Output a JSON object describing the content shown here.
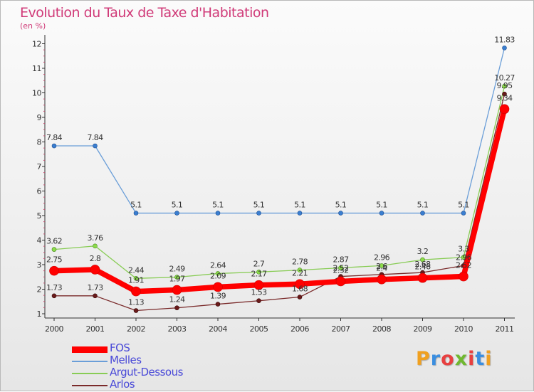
{
  "chart_data": {
    "type": "line",
    "title": "Evolution du Taux de Taxe d'Habitation",
    "subtitle": "(en %)",
    "x": [
      "2000",
      "2001",
      "2002",
      "2003",
      "2004",
      "2005",
      "2006",
      "2007",
      "2008",
      "2009",
      "2010",
      "2011"
    ],
    "ylim": [
      1,
      12
    ],
    "yticks": [
      "1",
      "2",
      "3",
      "4",
      "5",
      "6",
      "7",
      "8",
      "9",
      "10",
      "11",
      "12"
    ],
    "grid": false,
    "legend_position": "bottom-left",
    "series": [
      {
        "name": "FOS",
        "color": "#ff0000",
        "values": [
          2.75,
          2.8,
          1.91,
          1.97,
          2.09,
          2.17,
          2.21,
          2.32,
          2.4,
          2.46,
          2.52,
          9.34
        ],
        "labels": [
          "2.75",
          "2.8",
          "1.91",
          "1.97",
          "2.09",
          "2.17",
          "2.21",
          "2.32",
          "2.4",
          "2.46",
          "2.52",
          "9.34"
        ]
      },
      {
        "name": "Melles",
        "color": "#6a9ed8",
        "values": [
          7.84,
          7.84,
          5.1,
          5.1,
          5.1,
          5.1,
          5.1,
          5.1,
          5.1,
          5.1,
          5.1,
          11.83
        ],
        "labels": [
          "7.84",
          "7.84",
          "5.1",
          "5.1",
          "5.1",
          "5.1",
          "5.1",
          "5.1",
          "5.1",
          "5.1",
          "5.1",
          "11.83"
        ]
      },
      {
        "name": "Argut-Dessous",
        "color": "#88cc55",
        "values": [
          3.62,
          3.76,
          2.44,
          2.49,
          2.64,
          2.7,
          2.78,
          2.87,
          2.96,
          3.2,
          3.3,
          10.27
        ],
        "labels": [
          "3.62",
          "3.76",
          "2.44",
          "2.49",
          "2.64",
          "2.7",
          "2.78",
          "2.87",
          "2.96",
          "3.2",
          "3.3",
          "10.27"
        ]
      },
      {
        "name": "Arlos",
        "color": "#7a2a2a",
        "values": [
          1.73,
          1.73,
          1.13,
          1.24,
          1.39,
          1.53,
          1.68,
          2.52,
          2.6,
          2.68,
          2.96,
          9.95
        ],
        "labels": [
          "1.73",
          "1.73",
          "1.13",
          "1.24",
          "1.39",
          "1.53",
          "1.68",
          "2.52",
          "2.6",
          "2.68",
          "2.96",
          "9.95"
        ]
      }
    ]
  },
  "logo": {
    "letters": [
      {
        "ch": "P",
        "color": "#f0a020"
      },
      {
        "ch": "r",
        "color": "#3a8ee0"
      },
      {
        "ch": "o",
        "color": "#e84040"
      },
      {
        "ch": "x",
        "color": "#70b830"
      },
      {
        "ch": "i",
        "color": "#e84040"
      },
      {
        "ch": "t",
        "color": "#3a8ee0"
      },
      {
        "ch": "i",
        "color": "#f0a020"
      }
    ]
  }
}
